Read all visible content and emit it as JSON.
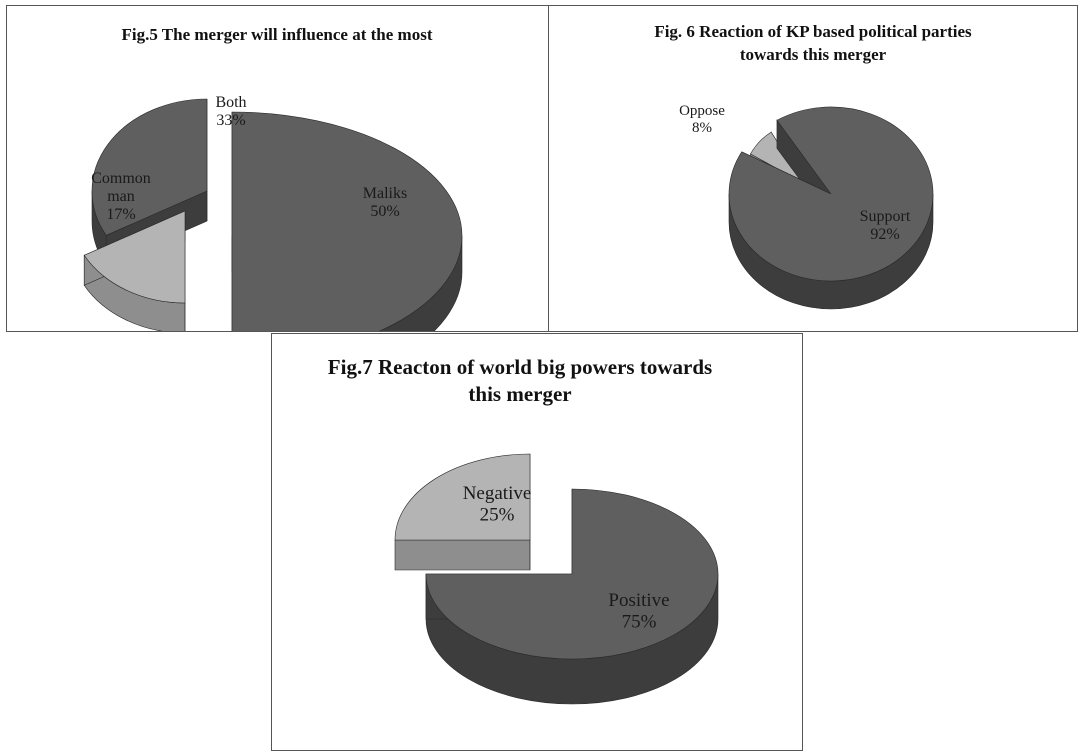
{
  "colors": {
    "dark_top": "#5f5f5f",
    "dark_side": "#3d3d3d",
    "light_top": "#b4b4b4",
    "light_side": "#8e8e8e",
    "text": "#111111",
    "border": "#555555"
  },
  "chart_data": [
    {
      "type": "pie",
      "title": "Fig.5 The merger will influence at the most",
      "slices": [
        {
          "label": "Maliks",
          "value": 50,
          "display": "50%",
          "shade": "dark"
        },
        {
          "label": "Common man",
          "value": 17,
          "display": "17%",
          "shade": "light"
        },
        {
          "label": "Both",
          "value": 33,
          "display": "33%",
          "shade": "dark"
        }
      ]
    },
    {
      "type": "pie",
      "title": "Fig. 6 Reaction of KP based political parties towards this merger",
      "slices": [
        {
          "label": "Support",
          "value": 92,
          "display": "92%",
          "shade": "dark"
        },
        {
          "label": "Oppose",
          "value": 8,
          "display": "8%",
          "shade": "light"
        }
      ]
    },
    {
      "type": "pie",
      "title": "Fig.7 Reacton of world big powers towards this merger",
      "slices": [
        {
          "label": "Positive",
          "value": 75,
          "display": "75%",
          "shade": "dark"
        },
        {
          "label": "Negative",
          "value": 25,
          "display": "25%",
          "shade": "light"
        }
      ]
    }
  ]
}
